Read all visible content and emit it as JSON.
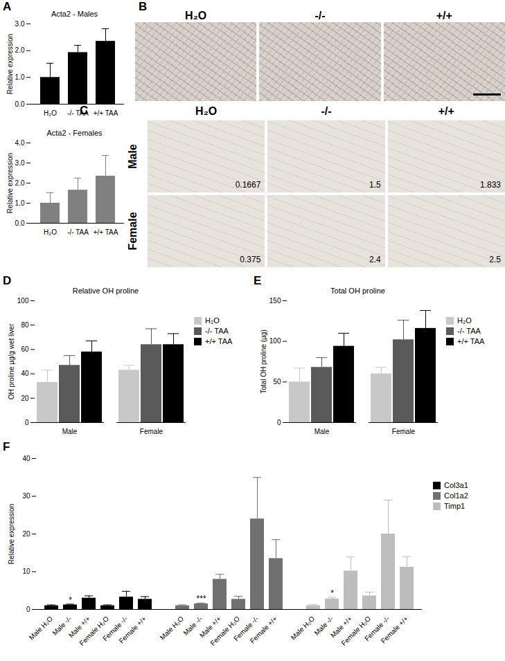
{
  "chart_data": [
    {
      "panel": "A",
      "type": "bar",
      "title": "Acta2 - Males",
      "y_label": "Relative expression",
      "categories": [
        "H₂O",
        "-/- TAA",
        "+/+ TAA"
      ],
      "values": [
        1.0,
        1.93,
        2.35
      ],
      "errors": [
        0.53,
        0.27,
        0.47
      ],
      "color": "#000000",
      "ylim": [
        0,
        3
      ],
      "yticks": [
        0,
        1,
        2,
        3
      ]
    },
    {
      "panel": "A",
      "type": "bar",
      "title": "Acta2 - Females",
      "y_label": "Relative expression",
      "categories": [
        "H₂O",
        "-/- TAA",
        "+/+ TAA"
      ],
      "values": [
        1.0,
        1.65,
        2.35
      ],
      "errors": [
        0.52,
        0.6,
        1.03
      ],
      "color": "#808080",
      "ylim": [
        0,
        4
      ],
      "yticks": [
        0,
        1,
        2,
        3,
        4
      ]
    },
    {
      "panel": "D",
      "type": "bar",
      "title": "Relative OH proline",
      "y_label": "OH proline µg/g wet liver",
      "categories": [
        "Male",
        "Female"
      ],
      "series": [
        {
          "name": "H₂O",
          "color": "#c8c8c8",
          "values": [
            33,
            43
          ],
          "errors": [
            10,
            4
          ]
        },
        {
          "name": "-/- TAA",
          "color": "#5a5a5a",
          "values": [
            47,
            64
          ],
          "errors": [
            8,
            13
          ]
        },
        {
          "name": "+/+ TAA",
          "color": "#000000",
          "values": [
            58,
            64
          ],
          "errors": [
            9,
            9
          ]
        }
      ],
      "ylim": [
        0,
        100
      ],
      "yticks": [
        0,
        20,
        40,
        60,
        80,
        100
      ],
      "legend": "right"
    },
    {
      "panel": "E",
      "type": "bar",
      "title": "Total OH proline",
      "y_label": "Total OH proline (µg)",
      "categories": [
        "Male",
        "Female"
      ],
      "series": [
        {
          "name": "H₂O",
          "color": "#c8c8c8",
          "values": [
            50,
            60
          ],
          "errors": [
            17,
            8
          ]
        },
        {
          "name": "-/- TAA",
          "color": "#5a5a5a",
          "values": [
            68,
            102
          ],
          "errors": [
            12,
            24
          ]
        },
        {
          "name": "+/+ TAA",
          "color": "#000000",
          "values": [
            94,
            116
          ],
          "errors": [
            16,
            22
          ]
        }
      ],
      "ylim": [
        0,
        150
      ],
      "yticks": [
        0,
        50,
        100,
        150
      ],
      "legend": "right"
    },
    {
      "panel": "F",
      "type": "bar",
      "y_label": "Relative expression",
      "categories": [
        "Male H₂O",
        "Male -/-",
        "Male +/+",
        "Female H₂O",
        "Female -/-",
        "Female +/+"
      ],
      "series": [
        {
          "name": "Col3a1",
          "color": "#000000",
          "values": [
            1.0,
            1.2,
            3.0,
            1.0,
            3.3,
            2.7
          ],
          "errors": [
            0.2,
            0.2,
            0.6,
            0.2,
            1.5,
            0.7
          ],
          "significance": [
            null,
            "*",
            null,
            null,
            null,
            null
          ]
        },
        {
          "name": "Col1a2",
          "color": "#707070",
          "values": [
            1.0,
            1.5,
            8.0,
            2.7,
            24,
            13.5
          ],
          "errors": [
            0.2,
            0.2,
            1.3,
            0.8,
            11,
            5
          ],
          "significance": [
            null,
            "***",
            null,
            null,
            null,
            null
          ]
        },
        {
          "name": "Timp1",
          "color": "#bdbdbd",
          "values": [
            1.0,
            2.8,
            10.2,
            3.6,
            20,
            11.2
          ],
          "errors": [
            0.3,
            0.4,
            3.7,
            1.0,
            9,
            2.8
          ],
          "significance": [
            null,
            "*",
            null,
            null,
            null,
            null
          ]
        }
      ],
      "ylim": [
        0,
        40
      ],
      "yticks": [
        0,
        10,
        20,
        30,
        40
      ],
      "legend": "right"
    }
  ],
  "images": [
    {
      "panel": "B",
      "columns": [
        "H₂O",
        "-/-",
        "+/+"
      ]
    },
    {
      "panel": "C",
      "columns": [
        "H₂O",
        "-/-",
        "+/+"
      ],
      "rows": [
        "Male",
        "Female"
      ],
      "scores": [
        [
          0.1667,
          1.5,
          1.833
        ],
        [
          0.375,
          2.4,
          2.5
        ]
      ]
    }
  ]
}
